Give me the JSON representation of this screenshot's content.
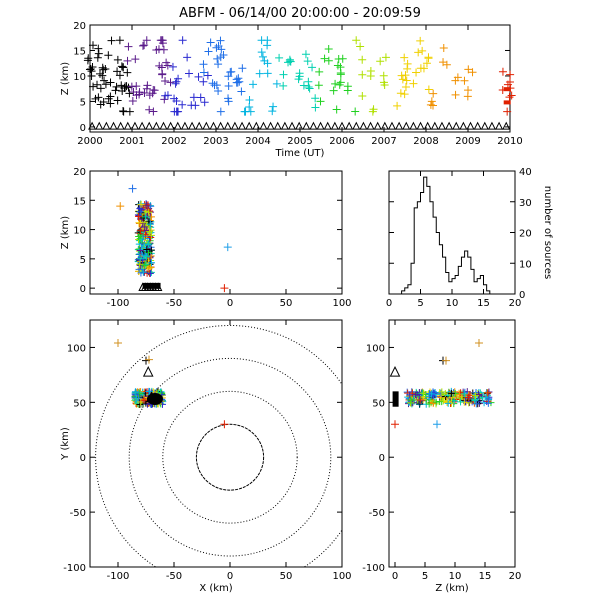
{
  "title": "ABFM - 06/14/00 20:00:00 - 20:09:59",
  "chart_data": [
    {
      "id": "time_height",
      "type": "scatter",
      "xlabel": "Time (UT)",
      "ylabel": "Z (km)",
      "xlim": [
        2000,
        2010
      ],
      "ylim": [
        -1,
        20
      ],
      "xticks": [
        "2000",
        "2001",
        "2002",
        "2003",
        "2004",
        "2005",
        "2006",
        "2007",
        "2008",
        "2009",
        "2010"
      ],
      "yticks": [
        "0",
        "5",
        "10",
        "15",
        "20"
      ],
      "marker": "plus",
      "color": "time-ramp (black → purple → blue → cyan → green → yellow → orange → red)",
      "x": [
        2000.05,
        2000.1,
        2000.15,
        2000.25,
        2000.3,
        2000.4,
        2000.5,
        2000.6,
        2000.7,
        2000.8,
        2000.9,
        2001.0,
        2001.1,
        2001.2,
        2001.3,
        2001.4,
        2001.5,
        2001.6,
        2001.7,
        2001.8,
        2001.9,
        2002.0,
        2002.1,
        2002.3,
        2002.5,
        2002.7,
        2002.8,
        2003.0,
        2003.1,
        2003.2,
        2003.4,
        2003.6,
        2003.8,
        2004.0,
        2004.2,
        2004.4,
        2004.6,
        2004.8,
        2005.0,
        2005.2,
        2005.3,
        2005.5,
        2005.7,
        2005.9,
        2006.0,
        2006.2,
        2006.4,
        2006.6,
        2006.8,
        2007.0,
        2007.4,
        2007.6,
        2007.8,
        2008.0,
        2008.2,
        2008.5,
        2008.8,
        2009.0,
        2009.9,
        2009.95
      ],
      "y": [
        13,
        10,
        8,
        14,
        7,
        12,
        6,
        15,
        9,
        11,
        5,
        13,
        8,
        7,
        14,
        10,
        4,
        12,
        16,
        9,
        6,
        11,
        5,
        14,
        8,
        7,
        13,
        10,
        15,
        6,
        12,
        9,
        4,
        11,
        14,
        7,
        10,
        16,
        8,
        12,
        6,
        9,
        13,
        5,
        11,
        7,
        14,
        9,
        6,
        12,
        8,
        10,
        13,
        11,
        7,
        14,
        9,
        8,
        6,
        7
      ]
    },
    {
      "id": "x_z",
      "type": "scatter",
      "xlabel": "",
      "ylabel": "Z (km)",
      "xlim": [
        -125,
        100
      ],
      "ylim": [
        -1,
        20
      ],
      "xticks": [
        "-100",
        "-50",
        "0",
        "50",
        "100"
      ],
      "yticks": [
        "0",
        "5",
        "10",
        "15",
        "20"
      ],
      "cluster": {
        "x": [
          -82,
          -70
        ],
        "z": [
          2,
          15
        ]
      },
      "outliers": [
        {
          "x": -98,
          "z": 14
        },
        {
          "x": -87,
          "z": 17
        },
        {
          "x": -2,
          "z": 7
        },
        {
          "x": -5,
          "z": 0
        }
      ]
    },
    {
      "id": "histogram",
      "type": "bar",
      "xlabel": "",
      "ylabel": "number of sources",
      "xlim": [
        0,
        20
      ],
      "ylim": [
        0,
        40
      ],
      "xticks": [
        "0",
        "5",
        "10",
        "15",
        "20"
      ],
      "yticks": [
        "0",
        "10",
        "20",
        "30",
        "40"
      ],
      "bin_width": 0.5,
      "categories": [
        2.0,
        2.5,
        3.0,
        3.5,
        4.0,
        4.5,
        5.0,
        5.5,
        6.0,
        6.5,
        7.0,
        7.5,
        8.0,
        8.5,
        9.0,
        9.5,
        10.0,
        10.5,
        11.0,
        11.5,
        12.0,
        12.5,
        13.0,
        13.5,
        14.0,
        14.5,
        15.0,
        15.5,
        16.0
      ],
      "values": [
        1,
        2,
        3,
        10,
        28,
        30,
        33,
        38,
        35,
        30,
        25,
        20,
        16,
        12,
        7,
        4,
        5,
        6,
        9,
        12,
        14,
        12,
        8,
        4,
        5,
        6,
        3,
        1,
        0
      ]
    },
    {
      "id": "x_y_plan",
      "type": "scatter",
      "xlabel": "X (km)",
      "ylabel": "Y (km)",
      "xlim": [
        -125,
        100
      ],
      "ylim": [
        -100,
        125
      ],
      "xticks": [
        "-100",
        "-50",
        "0",
        "50",
        "100"
      ],
      "yticks": [
        "-100",
        "-50",
        "0",
        "50",
        "100"
      ],
      "range_rings_km": [
        30,
        60,
        90,
        120
      ],
      "cluster": {
        "x": [
          -85,
          -60
        ],
        "y": [
          48,
          60
        ]
      },
      "stations": [
        {
          "x": -73,
          "y": 78
        },
        {
          "x": -70,
          "y": 55
        }
      ],
      "outliers": [
        {
          "x": -100,
          "y": 104
        },
        {
          "x": -75,
          "y": 88
        },
        {
          "x": -5,
          "y": 30
        }
      ]
    },
    {
      "id": "z_y",
      "type": "scatter",
      "xlabel": "Z (km)",
      "ylabel": "",
      "xlim": [
        -1,
        20
      ],
      "ylim": [
        -100,
        125
      ],
      "xticks": [
        "0",
        "5",
        "10",
        "15",
        "20"
      ],
      "yticks": [
        "-100",
        "-50",
        "0",
        "50",
        "100"
      ],
      "cluster": {
        "z": [
          2,
          16
        ],
        "y": [
          48,
          60
        ]
      },
      "outliers": [
        {
          "z": 14,
          "y": 104
        },
        {
          "z": 8,
          "y": 88
        },
        {
          "z": 7,
          "y": 30
        },
        {
          "z": 0,
          "y": 30
        }
      ]
    }
  ]
}
